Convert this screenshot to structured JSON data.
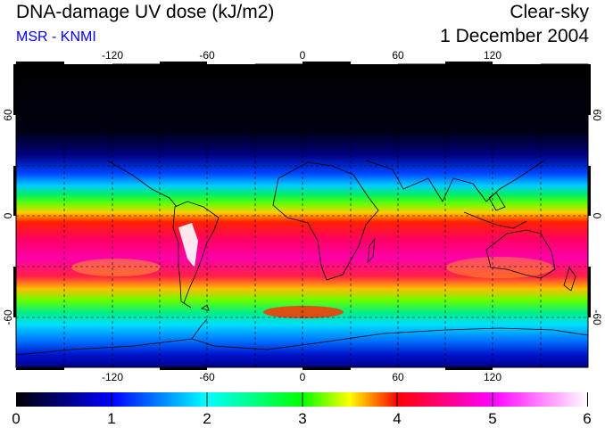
{
  "header": {
    "title": "DNA-damage UV dose (kJ/m2)",
    "subtitle": "MSR - KNMI",
    "sky_condition": "Clear-sky",
    "date": "1 December 2004"
  },
  "map": {
    "lon_ticks": [
      "-120",
      "-60",
      "0",
      "60",
      "120"
    ],
    "lat_ticks_left": [
      "60",
      "0",
      "-60"
    ],
    "lat_ticks_right": [
      "60",
      "0",
      "-60"
    ],
    "colors": {
      "frame": "#000000",
      "grid": "#000000",
      "coast": "#000000"
    }
  },
  "colorbar": {
    "labels": [
      "0",
      "1",
      "2",
      "3",
      "4",
      "5",
      "6"
    ],
    "stops": [
      "#000000",
      "#0000ff",
      "#00ffff",
      "#00ff00",
      "#ffff00",
      "#ff0000",
      "#ff00ff",
      "#ffffff"
    ]
  }
}
